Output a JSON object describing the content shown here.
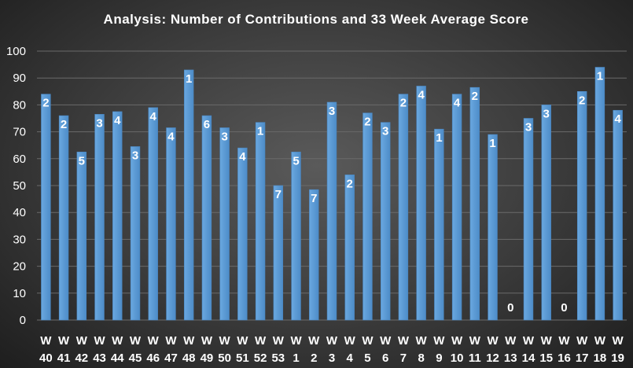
{
  "chart_data": {
    "type": "bar",
    "title": "Analysis:  Number  of  Contributions  and  33  Week  Average  Score",
    "xlabel": "",
    "ylabel": "",
    "ylim": [
      0,
      100
    ],
    "yticks": [
      0,
      10,
      20,
      30,
      40,
      50,
      60,
      70,
      80,
      90,
      100
    ],
    "grid": true,
    "categories": [
      [
        "W",
        "40"
      ],
      [
        "W",
        "41"
      ],
      [
        "W",
        "42"
      ],
      [
        "W",
        "43"
      ],
      [
        "W",
        "44"
      ],
      [
        "W",
        "45"
      ],
      [
        "W",
        "46"
      ],
      [
        "W",
        "47"
      ],
      [
        "W",
        "48"
      ],
      [
        "W",
        "49"
      ],
      [
        "W",
        "50"
      ],
      [
        "W",
        "51"
      ],
      [
        "W",
        "52"
      ],
      [
        "W",
        "53"
      ],
      [
        "W",
        "1"
      ],
      [
        "W",
        "2"
      ],
      [
        "W",
        "3"
      ],
      [
        "W",
        "4"
      ],
      [
        "W",
        "5"
      ],
      [
        "W",
        "6"
      ],
      [
        "W",
        "7"
      ],
      [
        "W",
        "8"
      ],
      [
        "W",
        "9"
      ],
      [
        "W",
        "10"
      ],
      [
        "W",
        "11"
      ],
      [
        "W",
        "12"
      ],
      [
        "W",
        "13"
      ],
      [
        "W",
        "14"
      ],
      [
        "W",
        "15"
      ],
      [
        "W",
        "16"
      ],
      [
        "W",
        "17"
      ],
      [
        "W",
        "18"
      ],
      [
        "W",
        "19"
      ]
    ],
    "series": [
      {
        "name": "33 Week Average Score",
        "values": [
          84,
          76,
          62.5,
          76.5,
          77.5,
          64.5,
          79,
          71.5,
          93,
          76,
          71.5,
          64,
          73.5,
          50,
          62.5,
          48.5,
          81,
          54,
          77,
          73.5,
          84,
          87,
          71,
          84,
          86.5,
          69,
          0,
          75,
          80,
          0,
          85,
          94,
          78
        ]
      },
      {
        "name": "Number of Contributions",
        "values": [
          2,
          2,
          5,
          3,
          4,
          3,
          4,
          4,
          1,
          6,
          3,
          4,
          1,
          7,
          5,
          7,
          3,
          2,
          2,
          3,
          2,
          4,
          1,
          4,
          2,
          1,
          0,
          3,
          3,
          0,
          2,
          1,
          4
        ]
      }
    ],
    "colors": {
      "bar": "#5b9bd5",
      "bar_edge": "#4a86c0",
      "text": "#ffffff",
      "grid": "#6a6a6a"
    }
  }
}
